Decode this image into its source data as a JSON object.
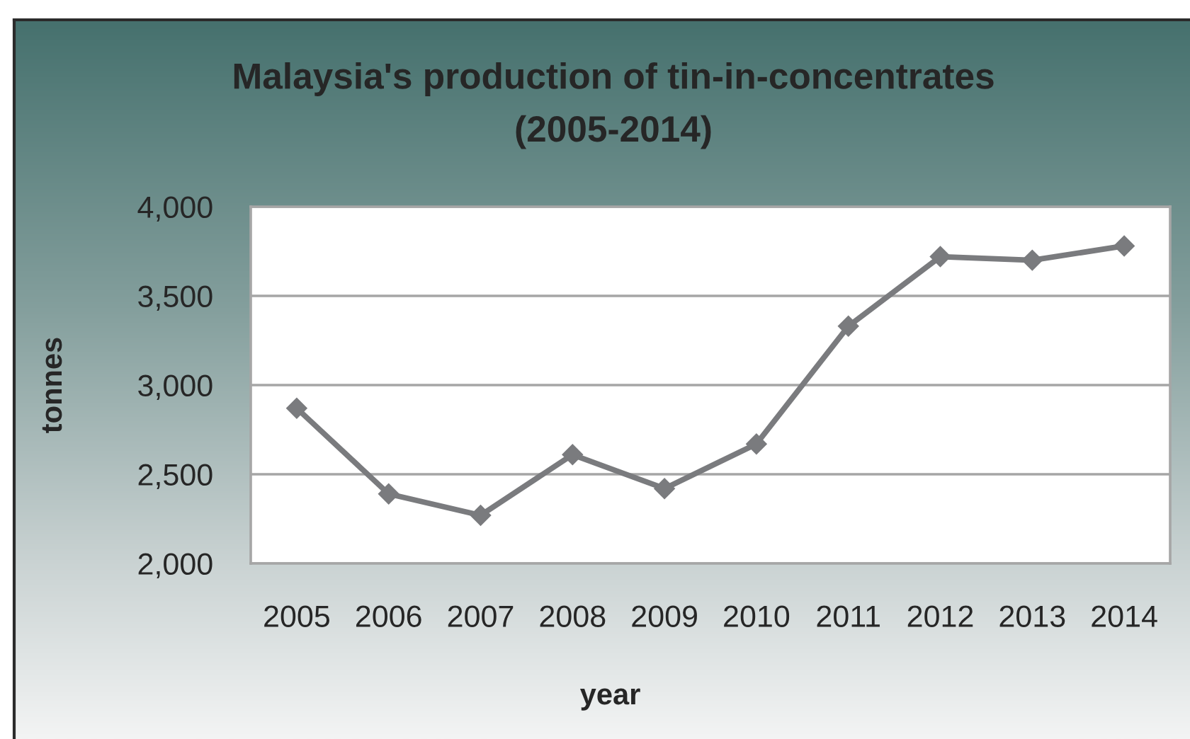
{
  "chart_data": {
    "type": "line",
    "title": "Malaysia's production of tin-in-concentrates\n(2005-2014)",
    "xlabel": "year",
    "ylabel": "tonnes",
    "categories": [
      "2005",
      "2006",
      "2007",
      "2008",
      "2009",
      "2010",
      "2011",
      "2012",
      "2013",
      "2014"
    ],
    "series": [
      {
        "color": "#7a7b7e",
        "values": [
          2870,
          2390,
          2270,
          2610,
          2420,
          2670,
          3330,
          3720,
          3700,
          3780
        ]
      }
    ],
    "ylim": [
      2000,
      4000
    ],
    "yticks": [
      {
        "value": 2000,
        "label": "2,000"
      },
      {
        "value": 2500,
        "label": "2,500"
      },
      {
        "value": 3000,
        "label": "3,000"
      },
      {
        "value": 3500,
        "label": "3,500"
      },
      {
        "value": 4000,
        "label": "4,000"
      }
    ],
    "grid": "y",
    "marker": "diamond",
    "line_style": "solid"
  }
}
